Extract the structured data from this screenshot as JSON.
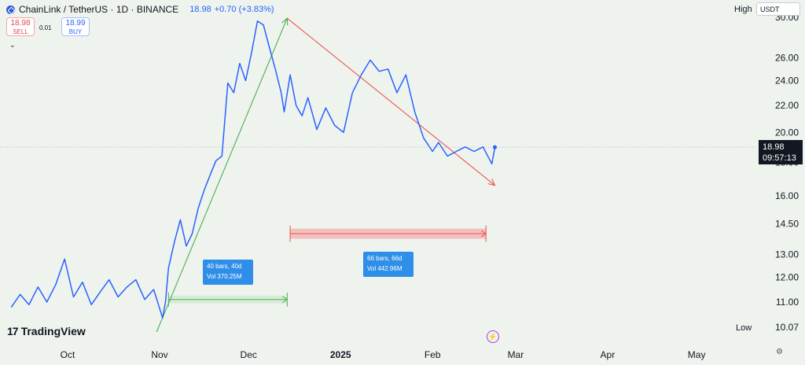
{
  "header": {
    "symbol": "ChainLink / TetherUS · 1D · BINANCE",
    "last_price": "18.98",
    "change": "+0.70 (+3.83%)",
    "sell_price": "18.98",
    "sell_label": "SELL",
    "buy_price": "18.99",
    "buy_label": "BUY",
    "spread": "0.01"
  },
  "scale": {
    "high_label": "High",
    "low_label": "Low",
    "currency": "USDT",
    "price_tag": "18.98",
    "countdown": "09:57:13"
  },
  "branding": {
    "name": "TradingView"
  },
  "colors": {
    "price_line": "#2962ff",
    "up_trend": "#4caf50",
    "down_trend": "#ef5350",
    "range_green": "#c8e6c9",
    "range_red": "#f4b6b6",
    "label_box": "#2f8fe8",
    "background": "#eef3ee"
  },
  "chart_data": {
    "type": "line",
    "series": [
      {
        "x": [
          "2024-09-12",
          "2024-09-15",
          "2024-09-18",
          "2024-09-21",
          "2024-09-24",
          "2024-09-27",
          "2024-09-30",
          "2024-10-03",
          "2024-10-06",
          "2024-10-09",
          "2024-10-12",
          "2024-10-15",
          "2024-10-18",
          "2024-10-21",
          "2024-10-24",
          "2024-10-27",
          "2024-10-30",
          "2024-11-02",
          "2024-11-03",
          "2024-11-04",
          "2024-11-06",
          "2024-11-08",
          "2024-11-10",
          "2024-11-12",
          "2024-11-14",
          "2024-11-16",
          "2024-11-18",
          "2024-11-20",
          "2024-11-22",
          "2024-11-24",
          "2024-11-26",
          "2024-11-28",
          "2024-11-30",
          "2024-12-02",
          "2024-12-04",
          "2024-12-06",
          "2024-12-08",
          "2024-12-10",
          "2024-12-12",
          "2024-12-13",
          "2024-12-15",
          "2024-12-17",
          "2024-12-19",
          "2024-12-21",
          "2024-12-24",
          "2024-12-27",
          "2024-12-30",
          "2025-01-02",
          "2025-01-05",
          "2025-01-08",
          "2025-01-11",
          "2025-01-14",
          "2025-01-17",
          "2025-01-20",
          "2025-01-23",
          "2025-01-26",
          "2025-01-29",
          "2025-02-01",
          "2025-02-03",
          "2025-02-06",
          "2025-02-09",
          "2025-02-12",
          "2025-02-15",
          "2025-02-18",
          "2025-02-21",
          "2025-02-22"
        ],
        "values": [
          10.8,
          11.3,
          10.9,
          11.6,
          11.0,
          11.7,
          12.8,
          11.2,
          11.8,
          10.9,
          11.4,
          11.9,
          11.2,
          11.6,
          11.9,
          11.1,
          11.5,
          10.4,
          11.0,
          12.4,
          13.6,
          14.7,
          13.4,
          14.0,
          15.3,
          16.3,
          17.2,
          18.1,
          18.4,
          23.8,
          23.0,
          25.5,
          24.0,
          26.5,
          29.6,
          29.2,
          27.0,
          25.0,
          23.0,
          21.5,
          24.5,
          22.0,
          21.2,
          22.6,
          20.2,
          21.8,
          20.5,
          20.0,
          23.0,
          24.5,
          25.8,
          24.8,
          25.0,
          23.0,
          24.5,
          21.5,
          19.6,
          18.7,
          19.3,
          18.4,
          18.7,
          19.0,
          18.7,
          19.0,
          17.9,
          18.98
        ],
        "line_color": "#2962ff"
      }
    ],
    "x_ticks": [
      "Oct",
      "Nov",
      "Dec",
      "2025",
      "Feb",
      "Mar",
      "Apr",
      "May"
    ],
    "y_ticks": [
      "30.00",
      "26.00",
      "24.00",
      "22.00",
      "20.00",
      "18.00",
      "16.00",
      "14.50",
      "13.00",
      "12.00",
      "11.00",
      "10.07"
    ],
    "y_scale": "log",
    "ylim": [
      10.0,
      30.5
    ],
    "grid": false,
    "annotations": [
      {
        "kind": "trend-arrow",
        "color": "#4caf50",
        "from": {
          "x": "2024-10-31",
          "y": 9.9
        },
        "to": {
          "x": "2024-12-14",
          "y": 29.9
        }
      },
      {
        "kind": "trend-arrow",
        "color": "#ef5350",
        "from": {
          "x": "2024-12-14",
          "y": 29.9
        },
        "to": {
          "x": "2025-02-22",
          "y": 16.6
        }
      },
      {
        "kind": "date-range",
        "color": "#4caf50",
        "from": {
          "x": "2024-11-04",
          "y": 10.95
        },
        "to": {
          "x": "2024-12-14",
          "y": 11.25
        },
        "label": [
          "40 bars, 40d",
          "Vol 370.25M"
        ]
      },
      {
        "kind": "date-range",
        "color": "#ef5350",
        "from": {
          "x": "2024-12-15",
          "y": 13.75
        },
        "to": {
          "x": "2025-02-19",
          "y": 14.25
        },
        "label": [
          "66 bars, 66d",
          "Vol 442.96M"
        ]
      }
    ],
    "current_price_line": 18.98
  }
}
